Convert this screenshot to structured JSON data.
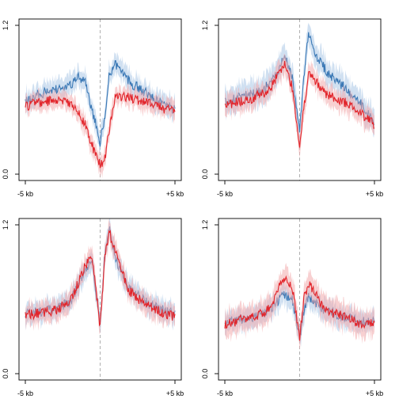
{
  "colors": {
    "blue_line": "#3a78b5",
    "blue_band": "#a9c7e6",
    "red_line": "#e2252b",
    "red_band": "#f2a9ab",
    "center_line": "#b0b0b0"
  },
  "chart_data": [
    {
      "type": "line",
      "panel": "top-left",
      "x_tick_labels": [
        "-5 kb",
        "+5 kb"
      ],
      "y_tick_labels": [
        "0.0",
        "1.2"
      ],
      "xlim": [
        -5,
        5
      ],
      "ylim": [
        0,
        1.2
      ],
      "x": [
        -5,
        -4,
        -3,
        -2,
        -1.5,
        -1,
        -0.5,
        0,
        0.3,
        0.6,
        1,
        1.5,
        2,
        3,
        4,
        5
      ],
      "series": [
        {
          "color": "blue",
          "values": [
            0.59,
            0.65,
            0.68,
            0.72,
            0.78,
            0.74,
            0.5,
            0.26,
            0.45,
            0.8,
            0.88,
            0.82,
            0.74,
            0.66,
            0.58,
            0.52
          ],
          "band": 0.08
        },
        {
          "color": "red",
          "values": [
            0.55,
            0.58,
            0.6,
            0.57,
            0.5,
            0.4,
            0.22,
            0.08,
            0.12,
            0.35,
            0.62,
            0.63,
            0.62,
            0.58,
            0.54,
            0.5
          ],
          "band": 0.07
        }
      ]
    },
    {
      "type": "line",
      "panel": "top-right",
      "x_tick_labels": [
        "-5 kb",
        "+5 kb"
      ],
      "y_tick_labels": [
        "0.0",
        "1.2"
      ],
      "xlim": [
        -5,
        5
      ],
      "ylim": [
        0,
        1.2
      ],
      "x": [
        -5,
        -4,
        -3,
        -2,
        -1.5,
        -1,
        -0.5,
        0,
        0.3,
        0.6,
        1,
        1.5,
        2,
        3,
        4,
        5
      ],
      "series": [
        {
          "color": "blue",
          "values": [
            0.58,
            0.62,
            0.65,
            0.72,
            0.82,
            0.95,
            0.78,
            0.35,
            0.8,
            1.15,
            0.95,
            0.88,
            0.8,
            0.7,
            0.58,
            0.42
          ],
          "band": 0.1
        },
        {
          "color": "red",
          "values": [
            0.56,
            0.58,
            0.62,
            0.68,
            0.8,
            0.9,
            0.7,
            0.22,
            0.55,
            0.8,
            0.76,
            0.68,
            0.63,
            0.58,
            0.5,
            0.4
          ],
          "band": 0.08
        }
      ]
    },
    {
      "type": "line",
      "panel": "bottom-left",
      "x_tick_labels": [
        "-5 kb",
        "+5 kb"
      ],
      "y_tick_labels": [
        "0.0",
        "1.2"
      ],
      "xlim": [
        -5,
        5
      ],
      "ylim": [
        0,
        1.2
      ],
      "x": [
        -5,
        -4,
        -3,
        -2,
        -1.5,
        -1,
        -0.5,
        0,
        0.3,
        0.6,
        1,
        1.5,
        2,
        3,
        4,
        5
      ],
      "series": [
        {
          "color": "blue",
          "values": [
            0.48,
            0.5,
            0.52,
            0.58,
            0.7,
            0.85,
            0.88,
            0.4,
            0.95,
            1.18,
            0.95,
            0.78,
            0.68,
            0.58,
            0.52,
            0.48
          ],
          "band": 0.08
        },
        {
          "color": "red",
          "values": [
            0.47,
            0.49,
            0.51,
            0.58,
            0.72,
            0.88,
            0.92,
            0.38,
            0.92,
            1.15,
            0.98,
            0.8,
            0.66,
            0.56,
            0.5,
            0.46
          ],
          "band": 0.08
        }
      ]
    },
    {
      "type": "line",
      "panel": "bottom-right",
      "x_tick_labels": [
        "-5 kb",
        "+5 kb"
      ],
      "y_tick_labels": [
        "0.0",
        "1.2"
      ],
      "xlim": [
        -5,
        5
      ],
      "ylim": [
        0,
        1.2
      ],
      "x": [
        -5,
        -4,
        -3,
        -2,
        -1.5,
        -1,
        -0.5,
        0,
        0.3,
        0.6,
        1,
        1.5,
        2,
        3,
        4,
        5
      ],
      "series": [
        {
          "color": "blue",
          "values": [
            0.42,
            0.44,
            0.46,
            0.5,
            0.58,
            0.64,
            0.6,
            0.28,
            0.52,
            0.62,
            0.58,
            0.52,
            0.5,
            0.46,
            0.42,
            0.42
          ],
          "band": 0.08
        },
        {
          "color": "red",
          "values": [
            0.4,
            0.43,
            0.46,
            0.52,
            0.66,
            0.78,
            0.7,
            0.3,
            0.62,
            0.72,
            0.66,
            0.56,
            0.5,
            0.46,
            0.4,
            0.42
          ],
          "band": 0.1
        }
      ]
    }
  ]
}
